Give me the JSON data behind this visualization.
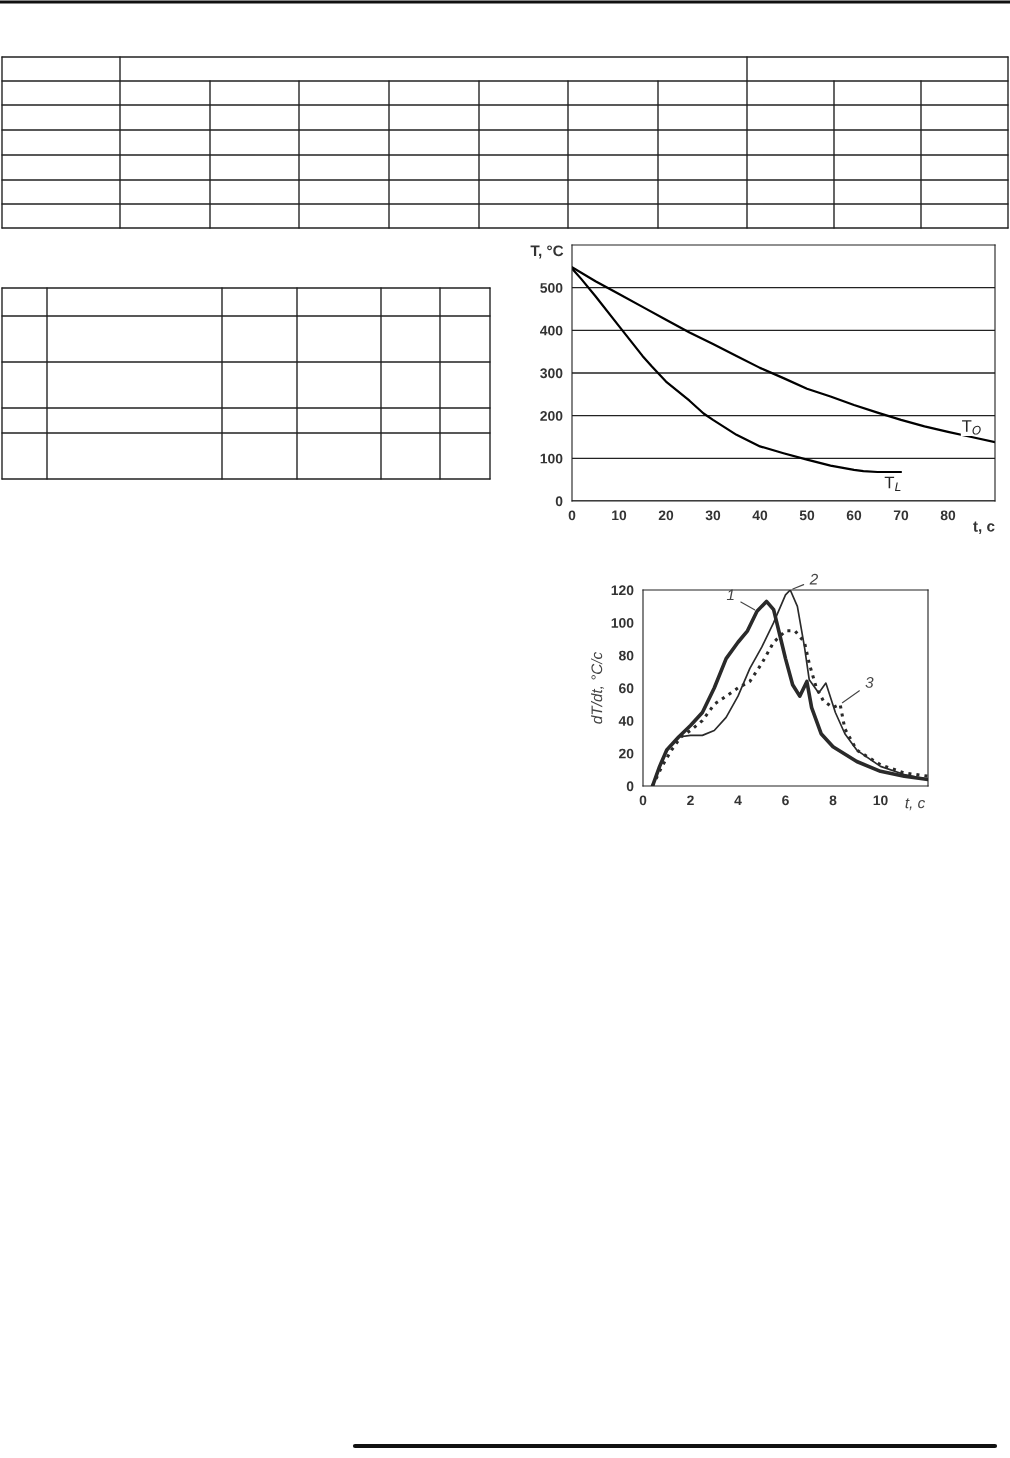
{
  "chart_data": [
    {
      "type": "line",
      "xlabel": "t, c",
      "ylabel": "T, °C",
      "xlim": [
        0,
        90
      ],
      "ylim": [
        0,
        600
      ],
      "xticks": [
        0,
        10,
        20,
        30,
        40,
        50,
        60,
        70,
        80
      ],
      "yticks": [
        0,
        100,
        200,
        300,
        400,
        500
      ],
      "grid": "y",
      "legend": false,
      "marker": "none",
      "line_style": "solid",
      "series": [
        {
          "name": "T$_{O}$",
          "color": "#000000",
          "x": [
            0,
            5,
            10,
            15,
            20,
            25,
            30,
            35,
            40,
            45,
            50,
            55,
            60,
            65,
            70,
            75,
            80,
            85,
            90
          ],
          "values": [
            548,
            515,
            485,
            455,
            425,
            395,
            368,
            340,
            312,
            288,
            263,
            245,
            225,
            207,
            190,
            175,
            162,
            150,
            138
          ]
        },
        {
          "name": "T$_{L}$",
          "color": "#000000",
          "x": [
            0,
            2,
            5,
            10,
            15,
            17,
            20,
            25,
            28,
            30,
            35,
            40,
            45,
            50,
            55,
            60,
            62,
            65,
            70
          ],
          "values": [
            545,
            520,
            480,
            410,
            340,
            315,
            280,
            235,
            205,
            190,
            155,
            128,
            112,
            97,
            83,
            73,
            70,
            68,
            68
          ]
        }
      ]
    },
    {
      "type": "line",
      "xlabel": "t, c",
      "ylabel": "dT/dt, °C/c",
      "xlim": [
        0,
        12
      ],
      "ylim": [
        0,
        120
      ],
      "xticks": [
        0,
        2,
        4,
        6,
        8,
        10
      ],
      "yticks": [
        0,
        20,
        40,
        60,
        80,
        100,
        120
      ],
      "grid": false,
      "legend": false,
      "marker": "none",
      "series": [
        {
          "name": "1",
          "color": "#2a2a2a",
          "line_style": "solid",
          "x": [
            0.4,
            0.7,
            1,
            1.5,
            2,
            2.5,
            3,
            3.5,
            4,
            4.4,
            4.8,
            5.2,
            5.5,
            5.8,
            6,
            6.3,
            6.6,
            6.9,
            7.1,
            7.5,
            8,
            9,
            10,
            11,
            12
          ],
          "values": [
            0,
            12,
            22,
            30,
            37,
            45,
            60,
            78,
            88,
            95,
            107,
            113,
            108,
            90,
            78,
            62,
            55,
            64,
            48,
            32,
            24,
            15,
            9,
            6,
            4
          ]
        },
        {
          "name": "2",
          "color": "#2a2a2a",
          "line_style": "solid",
          "x": [
            0.4,
            0.7,
            1,
            1.5,
            2,
            2.5,
            3,
            3.5,
            4,
            4.5,
            5,
            5.5,
            6,
            6.2,
            6.5,
            6.8,
            7,
            7.4,
            7.7,
            7.9,
            8.1,
            8.5,
            9,
            10,
            11,
            12
          ],
          "values": [
            0,
            12,
            22,
            30,
            31,
            31,
            34,
            42,
            55,
            72,
            85,
            100,
            117,
            120,
            110,
            85,
            65,
            57,
            63,
            54,
            45,
            32,
            22,
            12,
            7,
            4
          ]
        },
        {
          "name": "3",
          "color": "#2a2a2a",
          "line_style": "dotted",
          "x": [
            0.4,
            0.8,
            1.2,
            1.6,
            2,
            2.5,
            3,
            3.5,
            4,
            4.5,
            5,
            5.5,
            6,
            6.4,
            6.8,
            7,
            7.3,
            7.6,
            8,
            8.3,
            8.5,
            9,
            10,
            11,
            12
          ],
          "values": [
            0,
            12,
            22,
            30,
            34,
            40,
            50,
            55,
            60,
            64,
            75,
            88,
            95,
            95,
            88,
            75,
            60,
            52,
            48,
            50,
            35,
            22,
            13,
            8,
            6
          ]
        }
      ]
    }
  ]
}
